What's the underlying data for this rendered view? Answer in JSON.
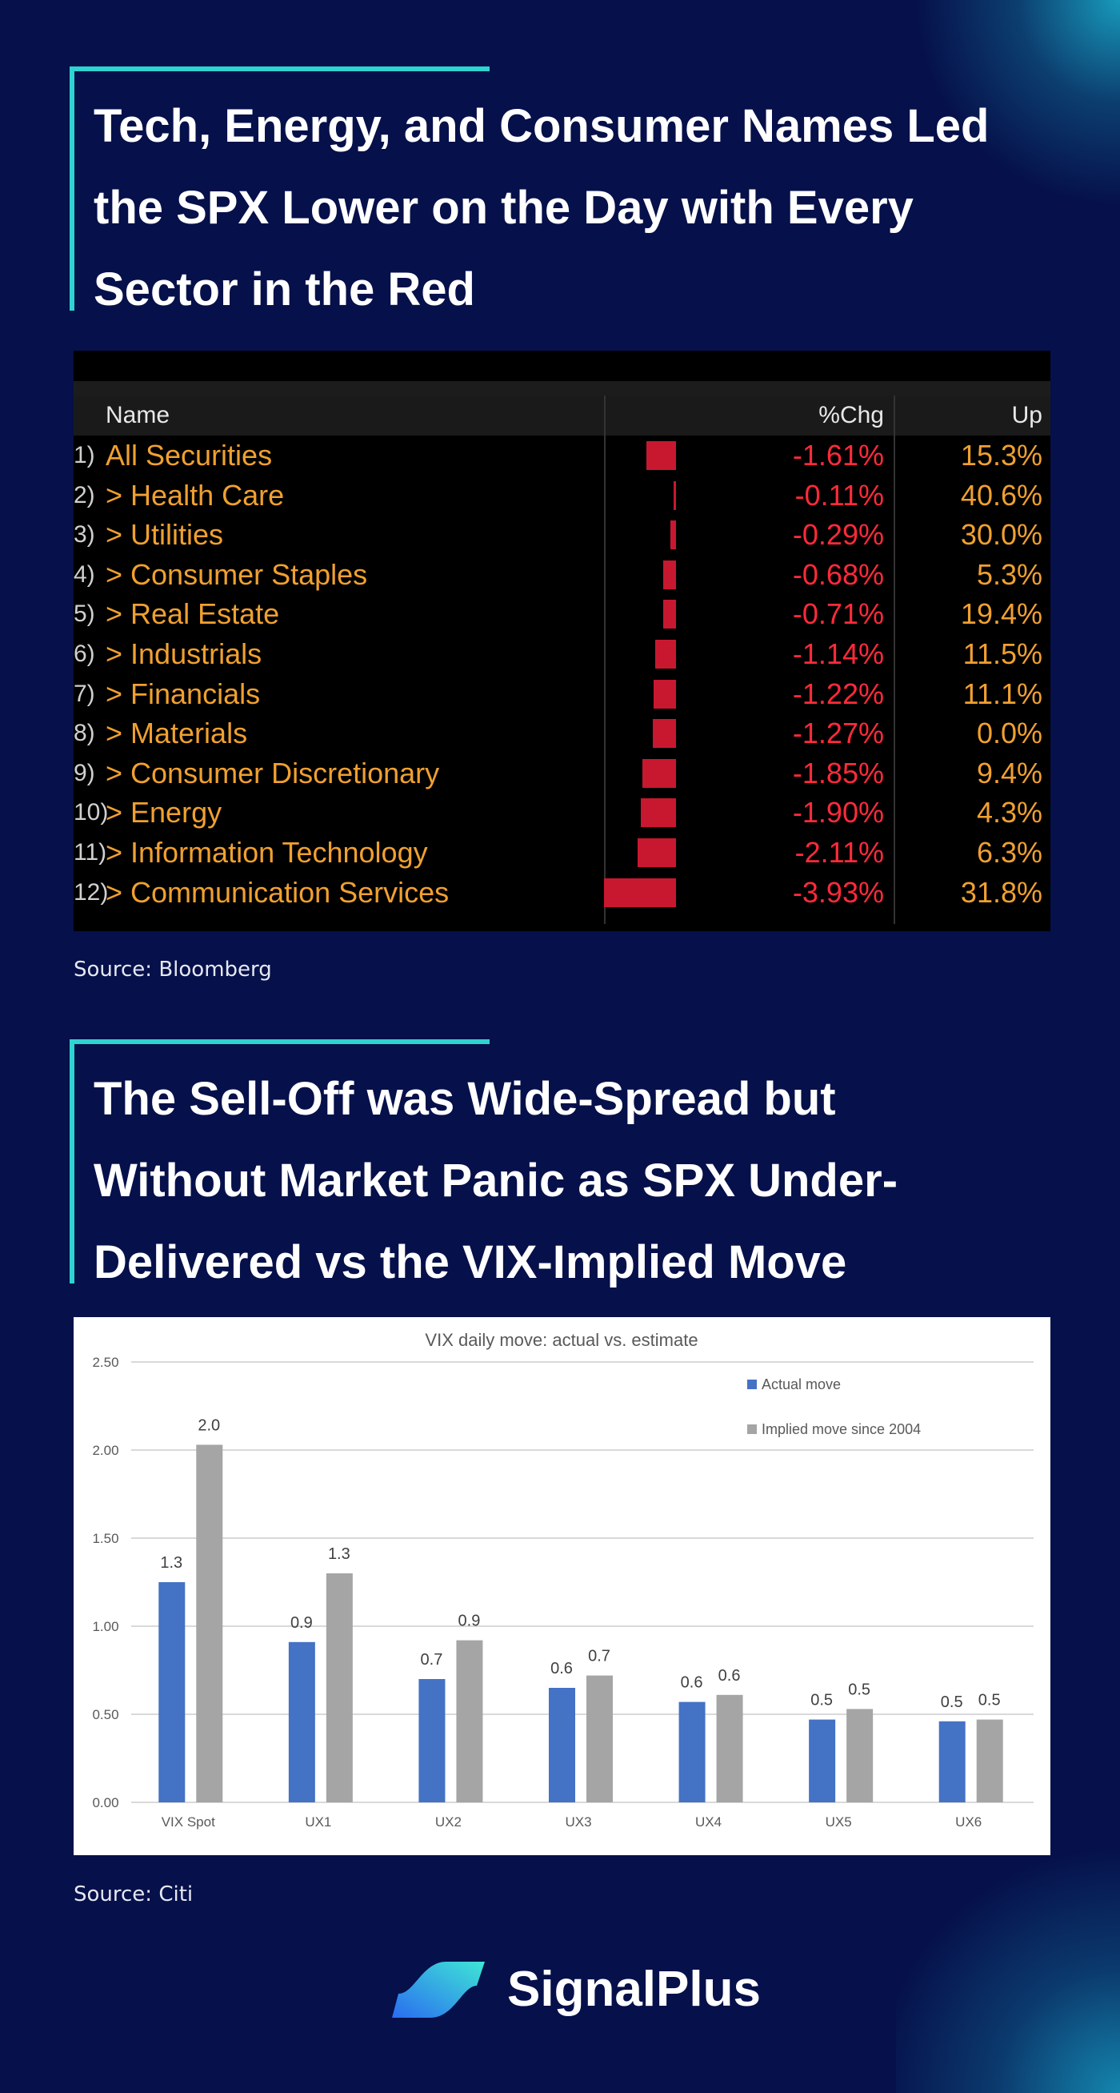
{
  "section1": {
    "title_lines": [
      "Tech, Energy, and Consumer Names Led",
      "the SPX Lower on the Day with Every",
      "Sector in the Red"
    ],
    "table": {
      "headers": {
        "name": "Name",
        "chg": "%Chg",
        "up": "Up"
      },
      "rows": [
        {
          "num": "1)",
          "name": "All Securities",
          "chg": "-1.61%",
          "chg_value": -1.61,
          "up": "15.3%"
        },
        {
          "num": "2)",
          "name": "> Health Care",
          "chg": "-0.11%",
          "chg_value": -0.11,
          "up": "40.6%"
        },
        {
          "num": "3)",
          "name": "> Utilities",
          "chg": "-0.29%",
          "chg_value": -0.29,
          "up": "30.0%"
        },
        {
          "num": "4)",
          "name": "> Consumer Staples",
          "chg": "-0.68%",
          "chg_value": -0.68,
          "up": "5.3%"
        },
        {
          "num": "5)",
          "name": "> Real Estate",
          "chg": "-0.71%",
          "chg_value": -0.71,
          "up": "19.4%"
        },
        {
          "num": "6)",
          "name": "> Industrials",
          "chg": "-1.14%",
          "chg_value": -1.14,
          "up": "11.5%"
        },
        {
          "num": "7)",
          "name": "> Financials",
          "chg": "-1.22%",
          "chg_value": -1.22,
          "up": "11.1%"
        },
        {
          "num": "8)",
          "name": "> Materials",
          "chg": "-1.27%",
          "chg_value": -1.27,
          "up": "0.0%"
        },
        {
          "num": "9)",
          "name": "> Consumer Discretionary",
          "chg": "-1.85%",
          "chg_value": -1.85,
          "up": "9.4%"
        },
        {
          "num": "10)",
          "name": "> Energy",
          "chg": "-1.90%",
          "chg_value": -1.9,
          "up": "4.3%"
        },
        {
          "num": "11)",
          "name": "> Information Technology",
          "chg": "-2.11%",
          "chg_value": -2.11,
          "up": "6.3%"
        },
        {
          "num": "12)",
          "name": "> Communication Services",
          "chg": "-3.93%",
          "chg_value": -3.93,
          "up": "31.8%"
        }
      ]
    },
    "source": "Source: Bloomberg"
  },
  "section2": {
    "title_lines": [
      "The Sell-Off was Wide-Spread but",
      "Without Market Panic as SPX Under-",
      "Delivered vs the VIX-Implied Move"
    ],
    "source": "Source: Citi"
  },
  "chart_data": {
    "type": "bar",
    "title": "VIX daily move: actual vs. estimate",
    "categories": [
      "VIX Spot",
      "UX1",
      "UX2",
      "UX3",
      "UX4",
      "UX5",
      "UX6"
    ],
    "series": [
      {
        "name": "Actual move",
        "color": "#4472c4",
        "values": [
          1.25,
          0.91,
          0.7,
          0.65,
          0.57,
          0.47,
          0.46
        ],
        "labels": [
          "1.3",
          "0.9",
          "0.7",
          "0.6",
          "0.6",
          "0.5",
          "0.5"
        ]
      },
      {
        "name": "Implied move since 2004",
        "color": "#a5a5a5",
        "values": [
          2.03,
          1.3,
          0.92,
          0.72,
          0.61,
          0.53,
          0.47
        ],
        "labels": [
          "2.0",
          "1.3",
          "0.9",
          "0.7",
          "0.6",
          "0.5",
          "0.5"
        ]
      }
    ],
    "yticks": [
      "0.00",
      "0.50",
      "1.00",
      "1.50",
      "2.00",
      "2.50"
    ],
    "ylim": [
      0,
      2.5
    ],
    "grid": true,
    "legend": "top-right"
  },
  "brand": {
    "name": "SignalPlus"
  },
  "colors": {
    "accent": "#2fd3d0",
    "background": "#06104a"
  }
}
